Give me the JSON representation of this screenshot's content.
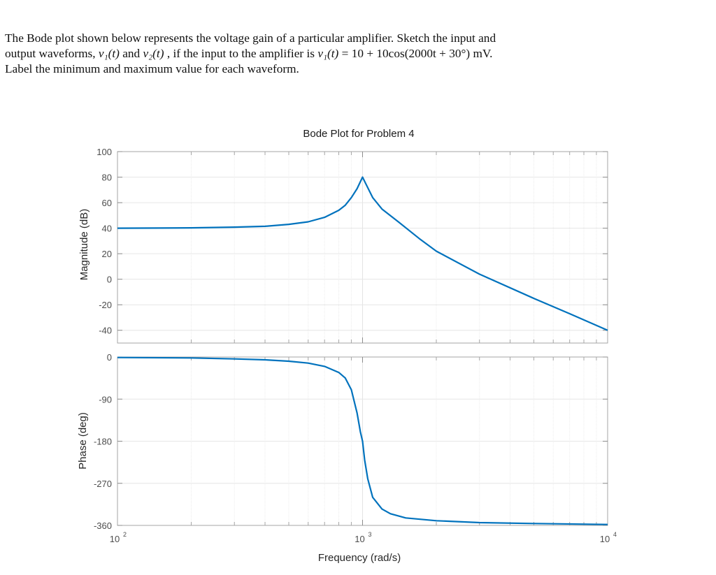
{
  "problem": {
    "line1": "The Bode plot shown below represents the voltage gain of a particular amplifier.  Sketch the input and",
    "line2_a": "output waveforms, ",
    "v1t": "v₁(t)",
    "and": " and ",
    "v2t": "v₂(t)",
    "line2_b": " , if the input to the amplifier is ",
    "v1t_eq": "v₁(t)",
    "line2_c": " = 10 + 10cos(2000t + 30°) mV.",
    "line3": "Label the minimum and maximum value for each waveform."
  },
  "chart_data": [
    {
      "type": "line",
      "panel": "magnitude",
      "title": "Bode Plot for Problem 4",
      "xlabel": "",
      "ylabel": "Magnitude (dB)",
      "xscale": "log",
      "xlim": [
        100,
        10000
      ],
      "ylim": [
        -50,
        100
      ],
      "yticks": [
        100,
        80,
        60,
        40,
        20,
        0,
        -20,
        -40
      ],
      "grid": true,
      "color": "#0072BD",
      "x": [
        100,
        150,
        200,
        300,
        400,
        500,
        600,
        700,
        800,
        850,
        900,
        950,
        1000,
        1030,
        1100,
        1200,
        1400,
        1700,
        2000,
        3000,
        5000,
        7000,
        10000
      ],
      "y": [
        40,
        40.1,
        40.3,
        40.8,
        41.5,
        43,
        45,
        48.5,
        54,
        58,
        64,
        71,
        80,
        75,
        64,
        55,
        45,
        32,
        22,
        4,
        -15,
        -27,
        -40
      ]
    },
    {
      "type": "line",
      "panel": "phase",
      "xlabel": "Frequency  (rad/s)",
      "ylabel": "Phase (deg)",
      "xscale": "log",
      "xlim": [
        100,
        10000
      ],
      "ylim": [
        -360,
        0
      ],
      "yticks": [
        0,
        -90,
        -180,
        -270,
        -360
      ],
      "xticks": [
        "10^2",
        "10^3",
        "10^4"
      ],
      "grid": true,
      "color": "#0072BD",
      "x": [
        100,
        200,
        300,
        400,
        500,
        600,
        700,
        800,
        850,
        900,
        950,
        980,
        1000,
        1020,
        1050,
        1100,
        1200,
        1300,
        1500,
        2000,
        3000,
        5000,
        10000
      ],
      "y": [
        -1,
        -2,
        -4,
        -6,
        -9,
        -13,
        -20,
        -33,
        -45,
        -70,
        -120,
        -160,
        -180,
        -220,
        -260,
        -300,
        -325,
        -335,
        -344,
        -350,
        -354,
        -356,
        -358
      ]
    }
  ],
  "labels": {
    "title": "Bode Plot for Problem 4",
    "mag_ylabel": "Magnitude (dB)",
    "phase_ylabel": "Phase (deg)",
    "xlabel": "Frequency  (rad/s)",
    "x_tick_base": "10",
    "x_tick_exps": [
      "2",
      "3",
      "4"
    ],
    "mag_ticks": [
      "100",
      "80",
      "60",
      "40",
      "20",
      "0",
      "-20",
      "-40"
    ],
    "phase_ticks": [
      "0",
      "-90",
      "-180",
      "-270",
      "-360"
    ]
  },
  "colors": {
    "line": "#0072BD",
    "axis": "#a6a6a6",
    "grid": "#e6e6e6"
  }
}
